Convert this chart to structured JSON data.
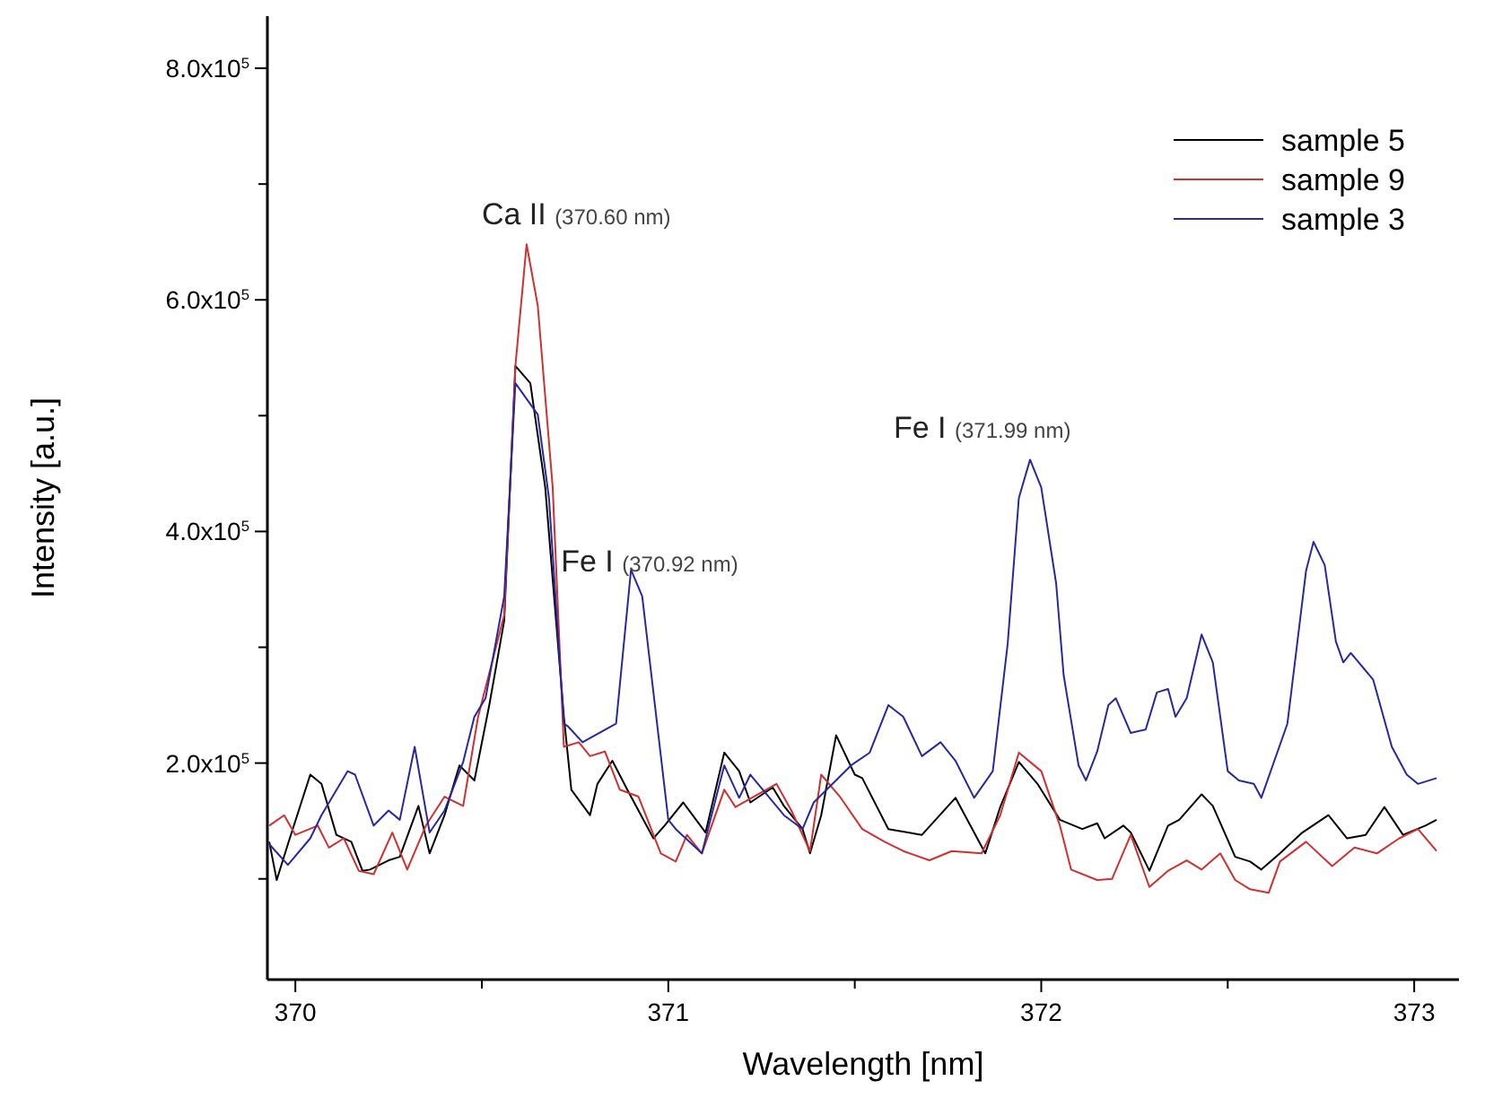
{
  "chart_data": {
    "type": "line",
    "xlabel": "Wavelength [nm]",
    "ylabel": "Intensity [a.u.]",
    "xlim": [
      369.925,
      373.12
    ],
    "ylim": [
      13000,
      845000
    ],
    "xticks": [
      370,
      {
        "value": 370.5,
        "label": null
      },
      371,
      {
        "value": 371.5,
        "label": null
      },
      372,
      {
        "value": 372.5,
        "label": null
      },
      373
    ],
    "yticks": [
      {
        "value": 100000,
        "label": null
      },
      {
        "value": 200000,
        "label": "2.0x10$^{5}$"
      },
      {
        "value": 300000,
        "label": null
      },
      {
        "value": 400000,
        "label": "4.0x10$^{5}$"
      },
      {
        "value": 500000,
        "label": null
      },
      {
        "value": 600000,
        "label": "6.0x10$^{5}$"
      },
      {
        "value": 700000,
        "label": null
      },
      {
        "value": 800000,
        "label": "8.0x10$^{5}$"
      }
    ],
    "grid": false,
    "legend": "top right",
    "marker": "none",
    "line_style": "solid",
    "annotations": [
      {
        "text": "Ca II (370.60 nm)",
        "x": 370.62,
        "y": 648000
      },
      {
        "text": "Fe I (370.92 nm)",
        "x": 370.9,
        "y": 367000
      },
      {
        "text": "Fe I (371.99 nm)",
        "x": 371.97,
        "y": 462000
      }
    ],
    "series": [
      {
        "name": "sample 5",
        "color": "#000000",
        "x": [
          369.93,
          369.95,
          369.98,
          370.04,
          370.07,
          370.11,
          370.15,
          370.18,
          370.2,
          370.25,
          370.28,
          370.33,
          370.36,
          370.4,
          370.44,
          370.48,
          370.52,
          370.56,
          370.59,
          370.63,
          370.67,
          370.72,
          370.74,
          370.79,
          370.81,
          370.85,
          370.89,
          370.96,
          370.99,
          371.04,
          371.1,
          371.15,
          371.19,
          371.22,
          371.28,
          371.31,
          371.36,
          371.38,
          371.41,
          371.45,
          371.5,
          371.52,
          371.59,
          371.68,
          371.77,
          371.85,
          371.89,
          371.94,
          371.99,
          372.05,
          372.11,
          372.15,
          372.17,
          372.22,
          372.24,
          372.29,
          372.34,
          372.37,
          372.43,
          372.46,
          372.52,
          372.56,
          372.59,
          372.64,
          372.7,
          372.77,
          372.82,
          372.87,
          372.92,
          372.97,
          373.03,
          373.06
        ],
        "values": [
          132000,
          99000,
          130000,
          190000,
          182000,
          138000,
          132000,
          107000,
          108000,
          116000,
          119000,
          163000,
          122000,
          155000,
          198000,
          185000,
          250000,
          323000,
          543000,
          528000,
          438000,
          240000,
          177000,
          155000,
          182000,
          202000,
          177000,
          135000,
          146000,
          166000,
          140000,
          209000,
          193000,
          166000,
          179000,
          163000,
          143000,
          122000,
          155000,
          224000,
          190000,
          187000,
          143000,
          138000,
          170000,
          122000,
          162000,
          201000,
          182000,
          151000,
          143000,
          148000,
          135000,
          146000,
          140000,
          107000,
          146000,
          151000,
          173000,
          163000,
          119000,
          115000,
          108000,
          122000,
          140000,
          155000,
          135000,
          138000,
          162000,
          138000,
          146000,
          151000
        ]
      },
      {
        "name": "sample 9",
        "color": "#d03030",
        "x": [
          369.93,
          369.97,
          370.0,
          370.06,
          370.09,
          370.13,
          370.17,
          370.21,
          370.26,
          370.3,
          370.35,
          370.4,
          370.45,
          370.49,
          370.56,
          370.59,
          370.62,
          370.65,
          370.69,
          370.72,
          370.76,
          370.79,
          370.83,
          370.87,
          370.92,
          370.98,
          371.02,
          371.05,
          371.09,
          371.15,
          371.18,
          371.29,
          371.33,
          371.38,
          371.41,
          371.46,
          371.52,
          371.58,
          371.63,
          371.7,
          371.76,
          371.84,
          371.89,
          371.94,
          372.0,
          372.05,
          372.08,
          372.15,
          372.19,
          372.24,
          372.29,
          372.34,
          372.39,
          372.43,
          372.48,
          372.52,
          372.56,
          372.61,
          372.64,
          372.71,
          372.78,
          372.84,
          372.9,
          372.96,
          373.01,
          373.06
        ],
        "values": [
          146000,
          155000,
          138000,
          146000,
          127000,
          135000,
          107000,
          104000,
          140000,
          108000,
          146000,
          171000,
          163000,
          240000,
          328000,
          543000,
          648000,
          595000,
          438000,
          214000,
          218000,
          206000,
          210000,
          177000,
          171000,
          122000,
          115000,
          138000,
          122000,
          177000,
          162000,
          182000,
          159000,
          124000,
          190000,
          171000,
          143000,
          132000,
          124000,
          116000,
          124000,
          122000,
          155000,
          209000,
          193000,
          146000,
          108000,
          99000,
          100000,
          138000,
          93000,
          107000,
          116000,
          108000,
          122000,
          99000,
          91000,
          88000,
          115000,
          132000,
          111000,
          127000,
          122000,
          135000,
          143000,
          124000
        ]
      },
      {
        "name": "sample 3",
        "color": "#2828a0",
        "x": [
          369.93,
          369.98,
          370.04,
          370.07,
          370.14,
          370.16,
          370.21,
          370.25,
          370.28,
          370.32,
          370.36,
          370.4,
          370.45,
          370.48,
          370.51,
          370.56,
          370.59,
          370.65,
          370.68,
          370.72,
          370.73,
          370.77,
          370.86,
          370.9,
          370.93,
          371.0,
          371.02,
          371.09,
          371.15,
          371.19,
          371.22,
          371.31,
          371.36,
          371.39,
          371.49,
          371.54,
          371.59,
          371.63,
          371.68,
          371.73,
          371.77,
          371.82,
          371.87,
          371.91,
          371.94,
          371.97,
          372.0,
          372.04,
          372.06,
          372.1,
          372.12,
          372.15,
          372.18,
          372.2,
          372.24,
          372.28,
          372.31,
          372.34,
          372.36,
          372.39,
          372.43,
          372.46,
          372.5,
          372.53,
          372.57,
          372.59,
          372.66,
          372.71,
          372.73,
          372.76,
          372.79,
          372.81,
          372.83,
          372.89,
          372.94,
          372.98,
          373.01,
          373.06
        ],
        "values": [
          130000,
          112000,
          135000,
          155000,
          193000,
          190000,
          146000,
          159000,
          151000,
          214000,
          140000,
          159000,
          201000,
          240000,
          256000,
          344000,
          528000,
          501000,
          429000,
          234000,
          232000,
          218000,
          234000,
          367000,
          344000,
          151000,
          143000,
          122000,
          198000,
          170000,
          190000,
          155000,
          143000,
          166000,
          198000,
          209000,
          250000,
          240000,
          206000,
          218000,
          202000,
          170000,
          193000,
          303000,
          429000,
          462000,
          438000,
          355000,
          276000,
          198000,
          185000,
          210000,
          250000,
          256000,
          226000,
          229000,
          261000,
          264000,
          240000,
          256000,
          311000,
          287000,
          193000,
          185000,
          182000,
          170000,
          234000,
          366000,
          391000,
          371000,
          305000,
          287000,
          295000,
          272000,
          214000,
          190000,
          182000,
          187000
        ]
      }
    ]
  }
}
